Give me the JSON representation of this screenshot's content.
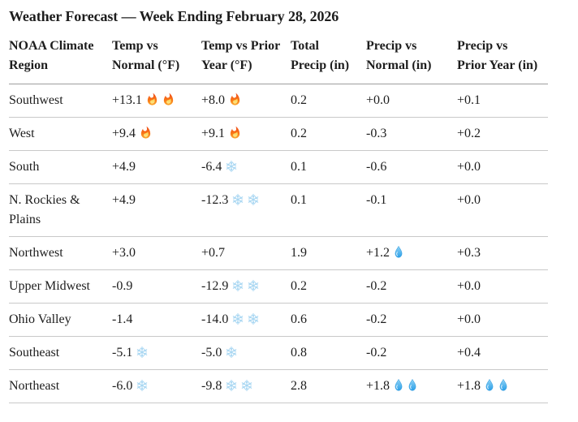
{
  "title": "Weather Forecast — Week Ending February 28, 2026",
  "table": {
    "header_lines": [
      [
        "NOAA Climate",
        "Region"
      ],
      [
        "Temp vs",
        "Normal (°F)"
      ],
      [
        "Temp vs Prior",
        "Year (°F)"
      ],
      [
        "Total",
        "Precip (in)"
      ],
      [
        "Precip vs",
        "Normal (in)"
      ],
      [
        "Precip vs",
        "Prior Year (in)"
      ]
    ],
    "rows": [
      {
        "region": "Southwest",
        "cells": [
          {
            "value": "+13.1",
            "icons": [
              "fire",
              "fire"
            ]
          },
          {
            "value": "+8.0",
            "icons": [
              "fire"
            ]
          },
          {
            "value": "0.2",
            "icons": []
          },
          {
            "value": "+0.0",
            "icons": []
          },
          {
            "value": "+0.1",
            "icons": []
          }
        ]
      },
      {
        "region": "West",
        "cells": [
          {
            "value": "+9.4",
            "icons": [
              "fire"
            ]
          },
          {
            "value": "+9.1",
            "icons": [
              "fire"
            ]
          },
          {
            "value": "0.2",
            "icons": []
          },
          {
            "value": "-0.3",
            "icons": []
          },
          {
            "value": "+0.2",
            "icons": []
          }
        ]
      },
      {
        "region": "South",
        "cells": [
          {
            "value": "+4.9",
            "icons": []
          },
          {
            "value": "-6.4",
            "icons": [
              "snowflake"
            ]
          },
          {
            "value": "0.1",
            "icons": []
          },
          {
            "value": "-0.6",
            "icons": []
          },
          {
            "value": "+0.0",
            "icons": []
          }
        ]
      },
      {
        "region": "N. Rockies & Plains",
        "cells": [
          {
            "value": "+4.9",
            "icons": []
          },
          {
            "value": "-12.3",
            "icons": [
              "snowflake",
              "snowflake"
            ]
          },
          {
            "value": "0.1",
            "icons": []
          },
          {
            "value": "-0.1",
            "icons": []
          },
          {
            "value": "+0.0",
            "icons": []
          }
        ]
      },
      {
        "region": "Northwest",
        "cells": [
          {
            "value": "+3.0",
            "icons": []
          },
          {
            "value": "+0.7",
            "icons": []
          },
          {
            "value": "1.9",
            "icons": []
          },
          {
            "value": "+1.2",
            "icons": [
              "droplet"
            ]
          },
          {
            "value": "+0.3",
            "icons": []
          }
        ]
      },
      {
        "region": "Upper Midwest",
        "cells": [
          {
            "value": "-0.9",
            "icons": []
          },
          {
            "value": "-12.9",
            "icons": [
              "snowflake",
              "snowflake"
            ]
          },
          {
            "value": "0.2",
            "icons": []
          },
          {
            "value": "-0.2",
            "icons": []
          },
          {
            "value": "+0.0",
            "icons": []
          }
        ]
      },
      {
        "region": "Ohio Valley",
        "cells": [
          {
            "value": "-1.4",
            "icons": []
          },
          {
            "value": "-14.0",
            "icons": [
              "snowflake",
              "snowflake"
            ]
          },
          {
            "value": "0.6",
            "icons": []
          },
          {
            "value": "-0.2",
            "icons": []
          },
          {
            "value": "+0.0",
            "icons": []
          }
        ]
      },
      {
        "region": "Southeast",
        "cells": [
          {
            "value": "-5.1",
            "icons": [
              "snowflake"
            ]
          },
          {
            "value": "-5.0",
            "icons": [
              "snowflake"
            ]
          },
          {
            "value": "0.8",
            "icons": []
          },
          {
            "value": "-0.2",
            "icons": []
          },
          {
            "value": "+0.4",
            "icons": []
          }
        ]
      },
      {
        "region": "Northeast",
        "cells": [
          {
            "value": "-6.0",
            "icons": [
              "snowflake"
            ]
          },
          {
            "value": "-9.8",
            "icons": [
              "snowflake",
              "snowflake"
            ]
          },
          {
            "value": "2.8",
            "icons": []
          },
          {
            "value": "+1.8",
            "icons": [
              "droplet",
              "droplet"
            ]
          },
          {
            "value": "+1.8",
            "icons": [
              "droplet",
              "droplet"
            ]
          }
        ]
      }
    ]
  },
  "chart_data": {
    "type": "table",
    "title": "Weather Forecast — Week Ending February 28, 2026",
    "columns": [
      "NOAA Climate Region",
      "Temp vs Normal (°F)",
      "Temp vs Prior Year (°F)",
      "Total Precip (in)",
      "Precip vs Normal (in)",
      "Precip vs Prior Year (in)"
    ],
    "rows": [
      [
        "Southwest",
        "+13.1 🔥🔥",
        "+8.0 🔥",
        "0.2",
        "+0.0",
        "+0.1"
      ],
      [
        "West",
        "+9.4 🔥",
        "+9.1 🔥",
        "0.2",
        "-0.3",
        "+0.2"
      ],
      [
        "South",
        "+4.9",
        "-6.4 ❄️",
        "0.1",
        "-0.6",
        "+0.0"
      ],
      [
        "N. Rockies & Plains",
        "+4.9",
        "-12.3 ❄️❄️",
        "0.1",
        "-0.1",
        "+0.0"
      ],
      [
        "Northwest",
        "+3.0",
        "+0.7",
        "1.9",
        "+1.2 💧",
        "+0.3"
      ],
      [
        "Upper Midwest",
        "-0.9",
        "-12.9 ❄️❄️",
        "0.2",
        "-0.2",
        "+0.0"
      ],
      [
        "Ohio Valley",
        "-1.4",
        "-14.0 ❄️❄️",
        "0.6",
        "-0.2",
        "+0.0"
      ],
      [
        "Southeast",
        "-5.1 ❄️",
        "-5.0 ❄️",
        "0.8",
        "-0.2",
        "+0.4"
      ],
      [
        "Northeast",
        "-6.0 ❄️",
        "-9.8 ❄️❄️",
        "2.8",
        "+1.8 💧💧",
        "+1.8 💧💧"
      ]
    ],
    "icon_legend": {
      "fire": "warmer",
      "snowflake": "colder",
      "droplet": "wetter"
    }
  },
  "colors": {
    "text": "#1d1d1d",
    "rule": "#c9c9c9",
    "header_rule": "#9e9e9e",
    "snowflake": "#a9d7f2",
    "fire_top": "#ee4d1f",
    "fire_mid": "#f97316",
    "fire_bottom": "#fbab30",
    "fire_inner_top": "#fcd34d",
    "fire_inner_bottom": "#fde68a",
    "droplet_top": "#90d4f6",
    "droplet_bottom": "#2b9fe8",
    "droplet_outline": "#1d8fd8"
  }
}
